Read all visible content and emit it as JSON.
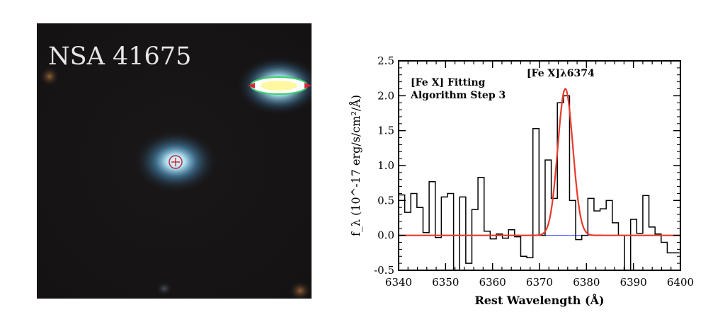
{
  "image_panel": {
    "label": "NSA 41675"
  },
  "chart_data": {
    "type": "line",
    "title": "",
    "annotation": "[Fe X] Fitting\nAlgorithm Step 3",
    "line_label": "[Fe X]λ6374",
    "xlabel": "Rest Wavelength (Å)",
    "ylabel": "f_λ (10^-17 erg/s/cm²/Å)",
    "xlim": [
      6340,
      6400
    ],
    "ylim": [
      -0.5,
      2.5
    ],
    "xticks": [
      "6340",
      "6350",
      "6360",
      "6370",
      "6380",
      "6390",
      "6400"
    ],
    "yticks": [
      "-0.5",
      "0.0",
      "0.5",
      "1.0",
      "1.5",
      "2.0",
      "2.5"
    ],
    "grid": false,
    "series": [
      {
        "kind": "step",
        "color": "#000000",
        "x": [
          6340,
          6341.3,
          6342.6,
          6343.9,
          6345.2,
          6346.5,
          6347.8,
          6349.1,
          6350.4,
          6351.7,
          6353.0,
          6354.3,
          6355.6,
          6356.9,
          6358.2,
          6359.5,
          6360.8,
          6362.1,
          6363.4,
          6364.7,
          6366.0,
          6367.3,
          6368.6,
          6369.9,
          6371.2,
          6372.5,
          6373.8,
          6375.1,
          6376.4,
          6377.7,
          6379.0,
          6380.3,
          6381.6,
          6382.9,
          6384.2,
          6385.5,
          6386.8,
          6388.1,
          6389.4,
          6390.7,
          6392.0,
          6393.3,
          6394.6,
          6395.9,
          6397.2,
          6398.5
        ],
        "y": [
          0.58,
          0.33,
          0.6,
          0.4,
          0.04,
          0.77,
          -0.03,
          0.55,
          0.6,
          -0.5,
          0.55,
          -0.4,
          0.37,
          0.83,
          0.06,
          -0.05,
          0.02,
          -0.04,
          0.08,
          -0.02,
          -0.3,
          -0.32,
          1.53,
          0.0,
          1.08,
          0.53,
          1.9,
          2.0,
          0.5,
          -0.06,
          0.0,
          0.53,
          0.35,
          0.38,
          0.5,
          0.18,
          0.0,
          -0.5,
          0.23,
          0.03,
          0.57,
          0.12,
          0.02,
          -0.1,
          -0.25,
          -0.25
        ]
      },
      {
        "kind": "gaussian",
        "color": "#e8392c",
        "amplitude": 2.1,
        "center": 6375.5,
        "sigma": 1.6
      },
      {
        "kind": "hline",
        "color": "#3344ff",
        "y": 0.0
      }
    ]
  }
}
